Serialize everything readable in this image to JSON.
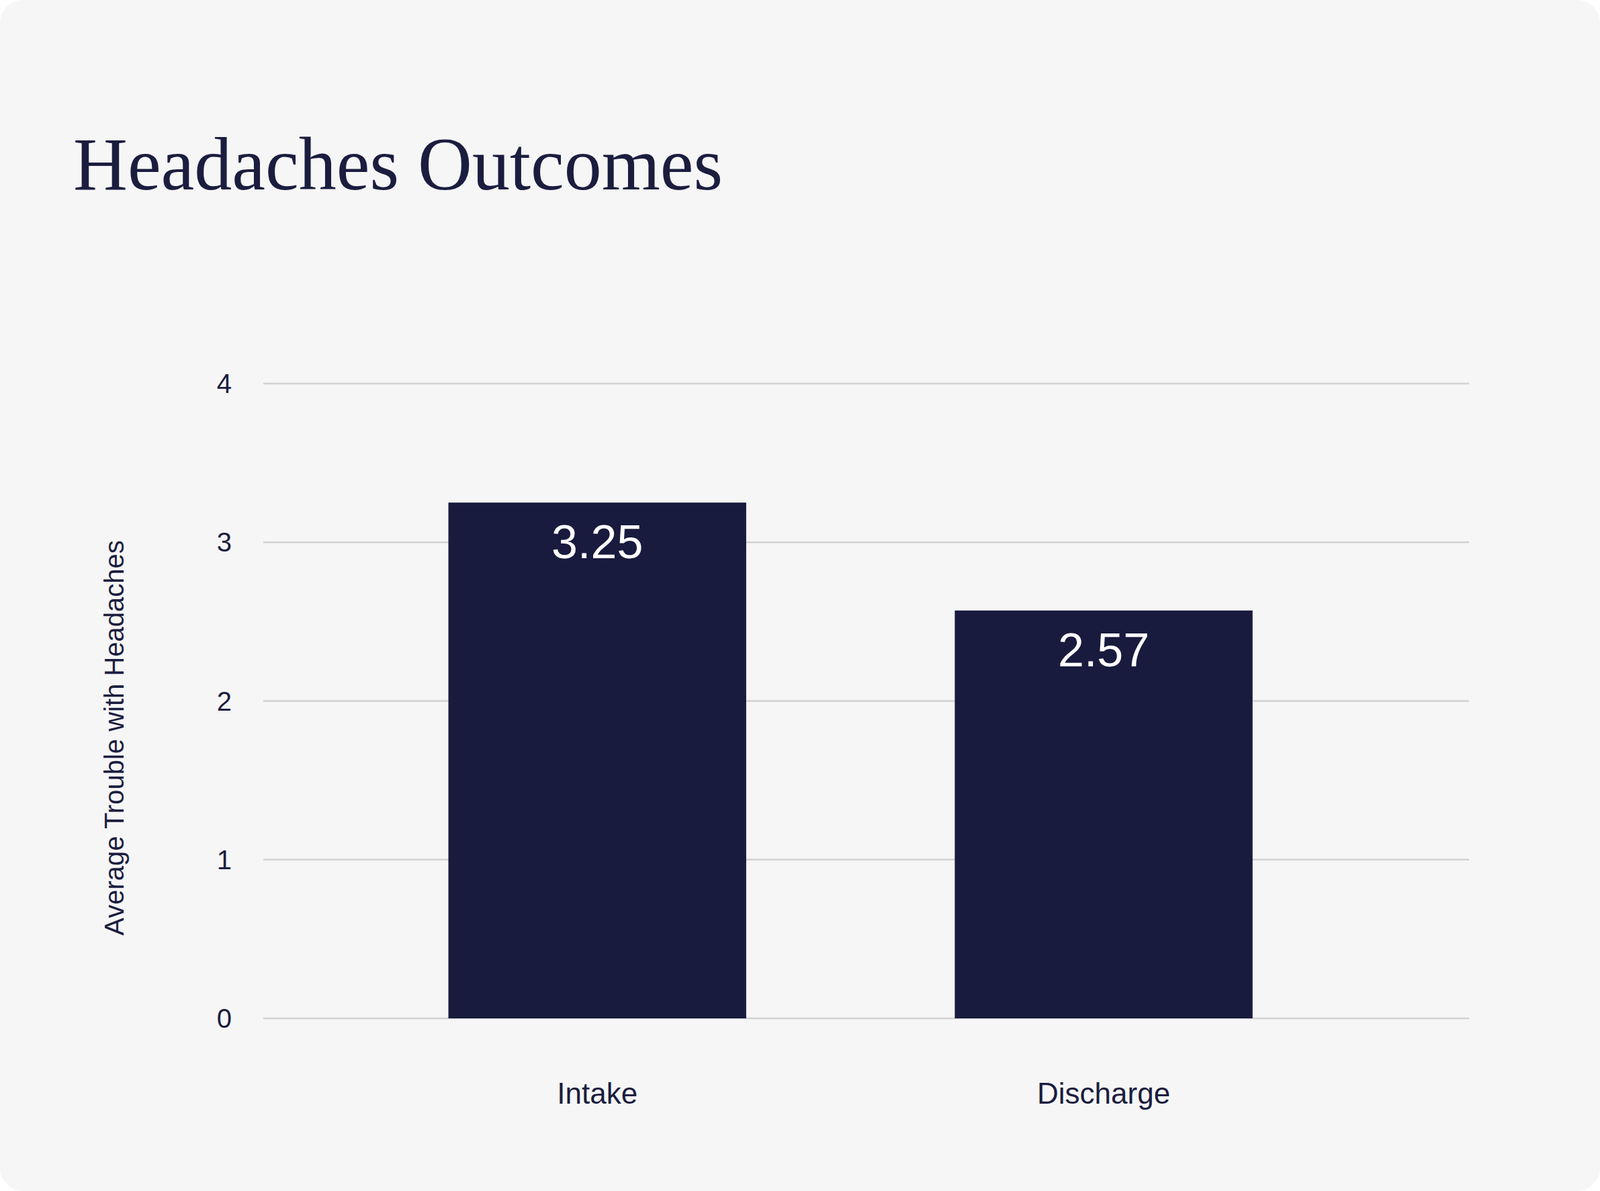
{
  "chart_data": {
    "type": "bar",
    "title": "Headaches Outcomes",
    "y_label": "Average Trouble with Headaches",
    "categories": [
      "Intake",
      "Discharge"
    ],
    "values": [
      3.25,
      2.57
    ],
    "color": "#181b3d",
    "ylim": [
      0,
      4
    ],
    "yticks": [
      0,
      1,
      2,
      3,
      4
    ],
    "grid": true,
    "data_labels": true
  }
}
